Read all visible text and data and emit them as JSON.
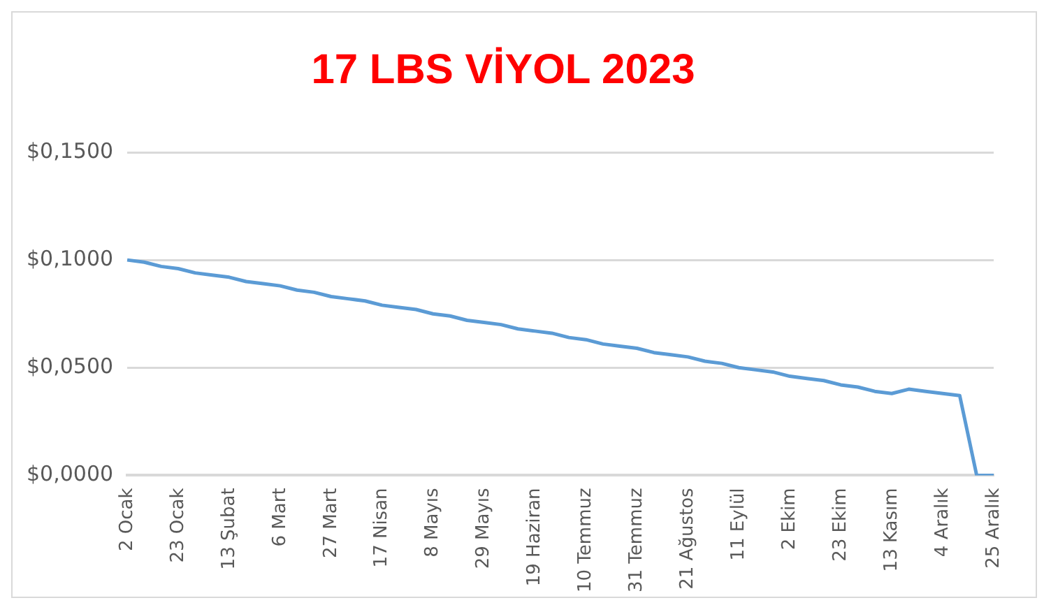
{
  "chart_data": {
    "type": "line",
    "title": "17 LBS VİYOL 2023",
    "categories": [
      "2 Ocak",
      null,
      null,
      "23 Ocak",
      null,
      null,
      "13 Şubat",
      null,
      null,
      "6 Mart",
      null,
      null,
      "27 Mart",
      null,
      null,
      "17 Nisan",
      null,
      null,
      "8 Mayıs",
      null,
      null,
      "29 Mayıs",
      null,
      null,
      "19 Haziran",
      null,
      null,
      "10 Temmuz",
      null,
      null,
      "31 Temmuz",
      null,
      null,
      "21 Ağustos",
      null,
      null,
      "11 Eylül",
      null,
      null,
      "2 Ekim",
      null,
      null,
      "23 Ekim",
      null,
      null,
      "13 Kasım",
      null,
      null,
      "4 Aralık",
      null,
      null,
      "25 Aralık"
    ],
    "series": [
      {
        "color": "#5b9bd5",
        "values": [
          0.1,
          0.099,
          0.097,
          0.096,
          0.094,
          0.093,
          0.092,
          0.09,
          0.089,
          0.088,
          0.086,
          0.085,
          0.083,
          0.082,
          0.081,
          0.079,
          0.078,
          0.077,
          0.075,
          0.074,
          0.072,
          0.071,
          0.07,
          0.068,
          0.067,
          0.066,
          0.064,
          0.063,
          0.061,
          0.06,
          0.059,
          0.057,
          0.056,
          0.055,
          0.053,
          0.052,
          0.05,
          0.049,
          0.048,
          0.046,
          0.045,
          0.044,
          0.042,
          0.041,
          0.039,
          0.038,
          0.04,
          0.039,
          0.038,
          0.037,
          0.0,
          0.0
        ]
      }
    ],
    "ylim": [
      0,
      0.15
    ],
    "yticks": [
      {
        "value": 0,
        "label": "$0,0000"
      },
      {
        "value": 0.05,
        "label": "$0,0500"
      },
      {
        "value": 0.1,
        "label": "$0,1000"
      },
      {
        "value": 0.15,
        "label": "$0,1500"
      }
    ],
    "grid": "y",
    "marker": "none",
    "line_style": "solid"
  }
}
